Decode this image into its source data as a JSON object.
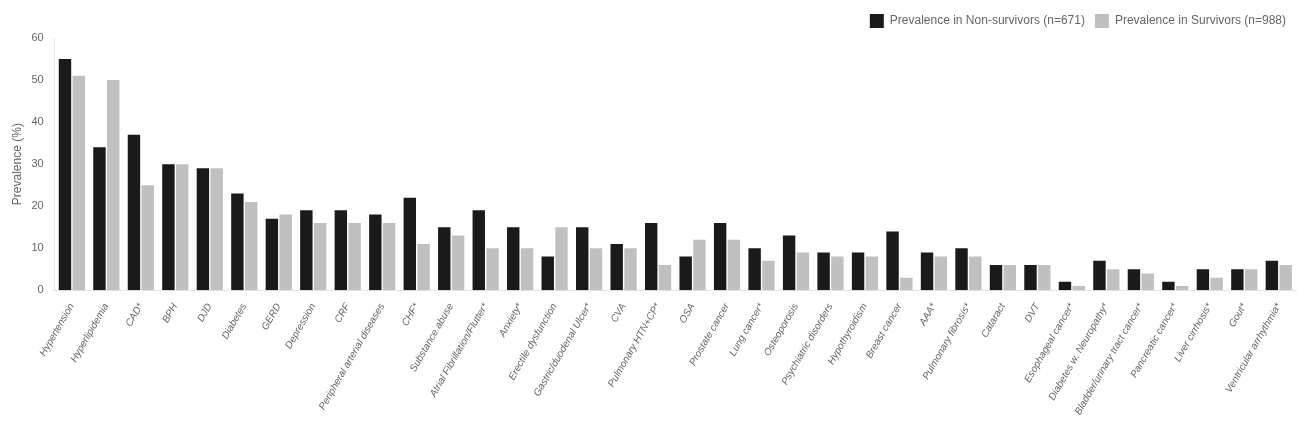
{
  "chart_data": {
    "type": "bar",
    "ylabel": "Prevalence (%)",
    "categories": [
      "Hypertension",
      "Hyperlipidemia",
      "CAD*",
      "BPH",
      "DJD",
      "Diabetes",
      "GERD",
      "Depression",
      "CRF",
      "Peripheral arterial diseases",
      "CHF*",
      "Substance abuse",
      "Atrial Fibrillation/Flutter*",
      "Anxiety*",
      "Erectile dysfunction",
      "Gastric/duodenal Ulcer*",
      "CVA",
      "Pulmonary HTN+CP*",
      "OSA",
      "Prostate cancer",
      "Lung cancer*",
      "Osteoporosis",
      "Psychiatric disorders",
      "Hypothyroidism",
      "Breast cancer",
      "AAA*",
      "Pulmonary fibrosis*",
      "Cataract",
      "DVT",
      "Esophageal cancer*",
      "Diabetes w. Neuropathy*",
      "Bladder/urinary tract cancer*",
      "Pancreatic cancer*",
      "Liver cirrhosis*",
      "Gout*",
      "Ventricular arrhythmia*"
    ],
    "series": [
      {
        "name": "Prevalence in Non-survivors (n=671)",
        "color": "#1a1a1a",
        "values": [
          55,
          34,
          37,
          30,
          29,
          23,
          17,
          19,
          19,
          18,
          22,
          15,
          19,
          15,
          8,
          15,
          11,
          16,
          8,
          16,
          10,
          13,
          9,
          9,
          14,
          9,
          10,
          6,
          6,
          2,
          7,
          5,
          2,
          5,
          5,
          7
        ]
      },
      {
        "name": "Prevalence in Survivors (n=988)",
        "color": "#c0c0c0",
        "values": [
          51,
          50,
          25,
          30,
          29,
          21,
          18,
          16,
          16,
          16,
          11,
          13,
          10,
          10,
          15,
          10,
          10,
          6,
          12,
          12,
          7,
          9,
          8,
          8,
          3,
          8,
          8,
          6,
          6,
          1,
          5,
          4,
          1,
          3,
          5,
          6
        ]
      }
    ],
    "ylim": [
      0,
      60
    ],
    "yticks": [
      0,
      10,
      20,
      30,
      40,
      50,
      60
    ],
    "grid": false,
    "legend": "upper right"
  }
}
